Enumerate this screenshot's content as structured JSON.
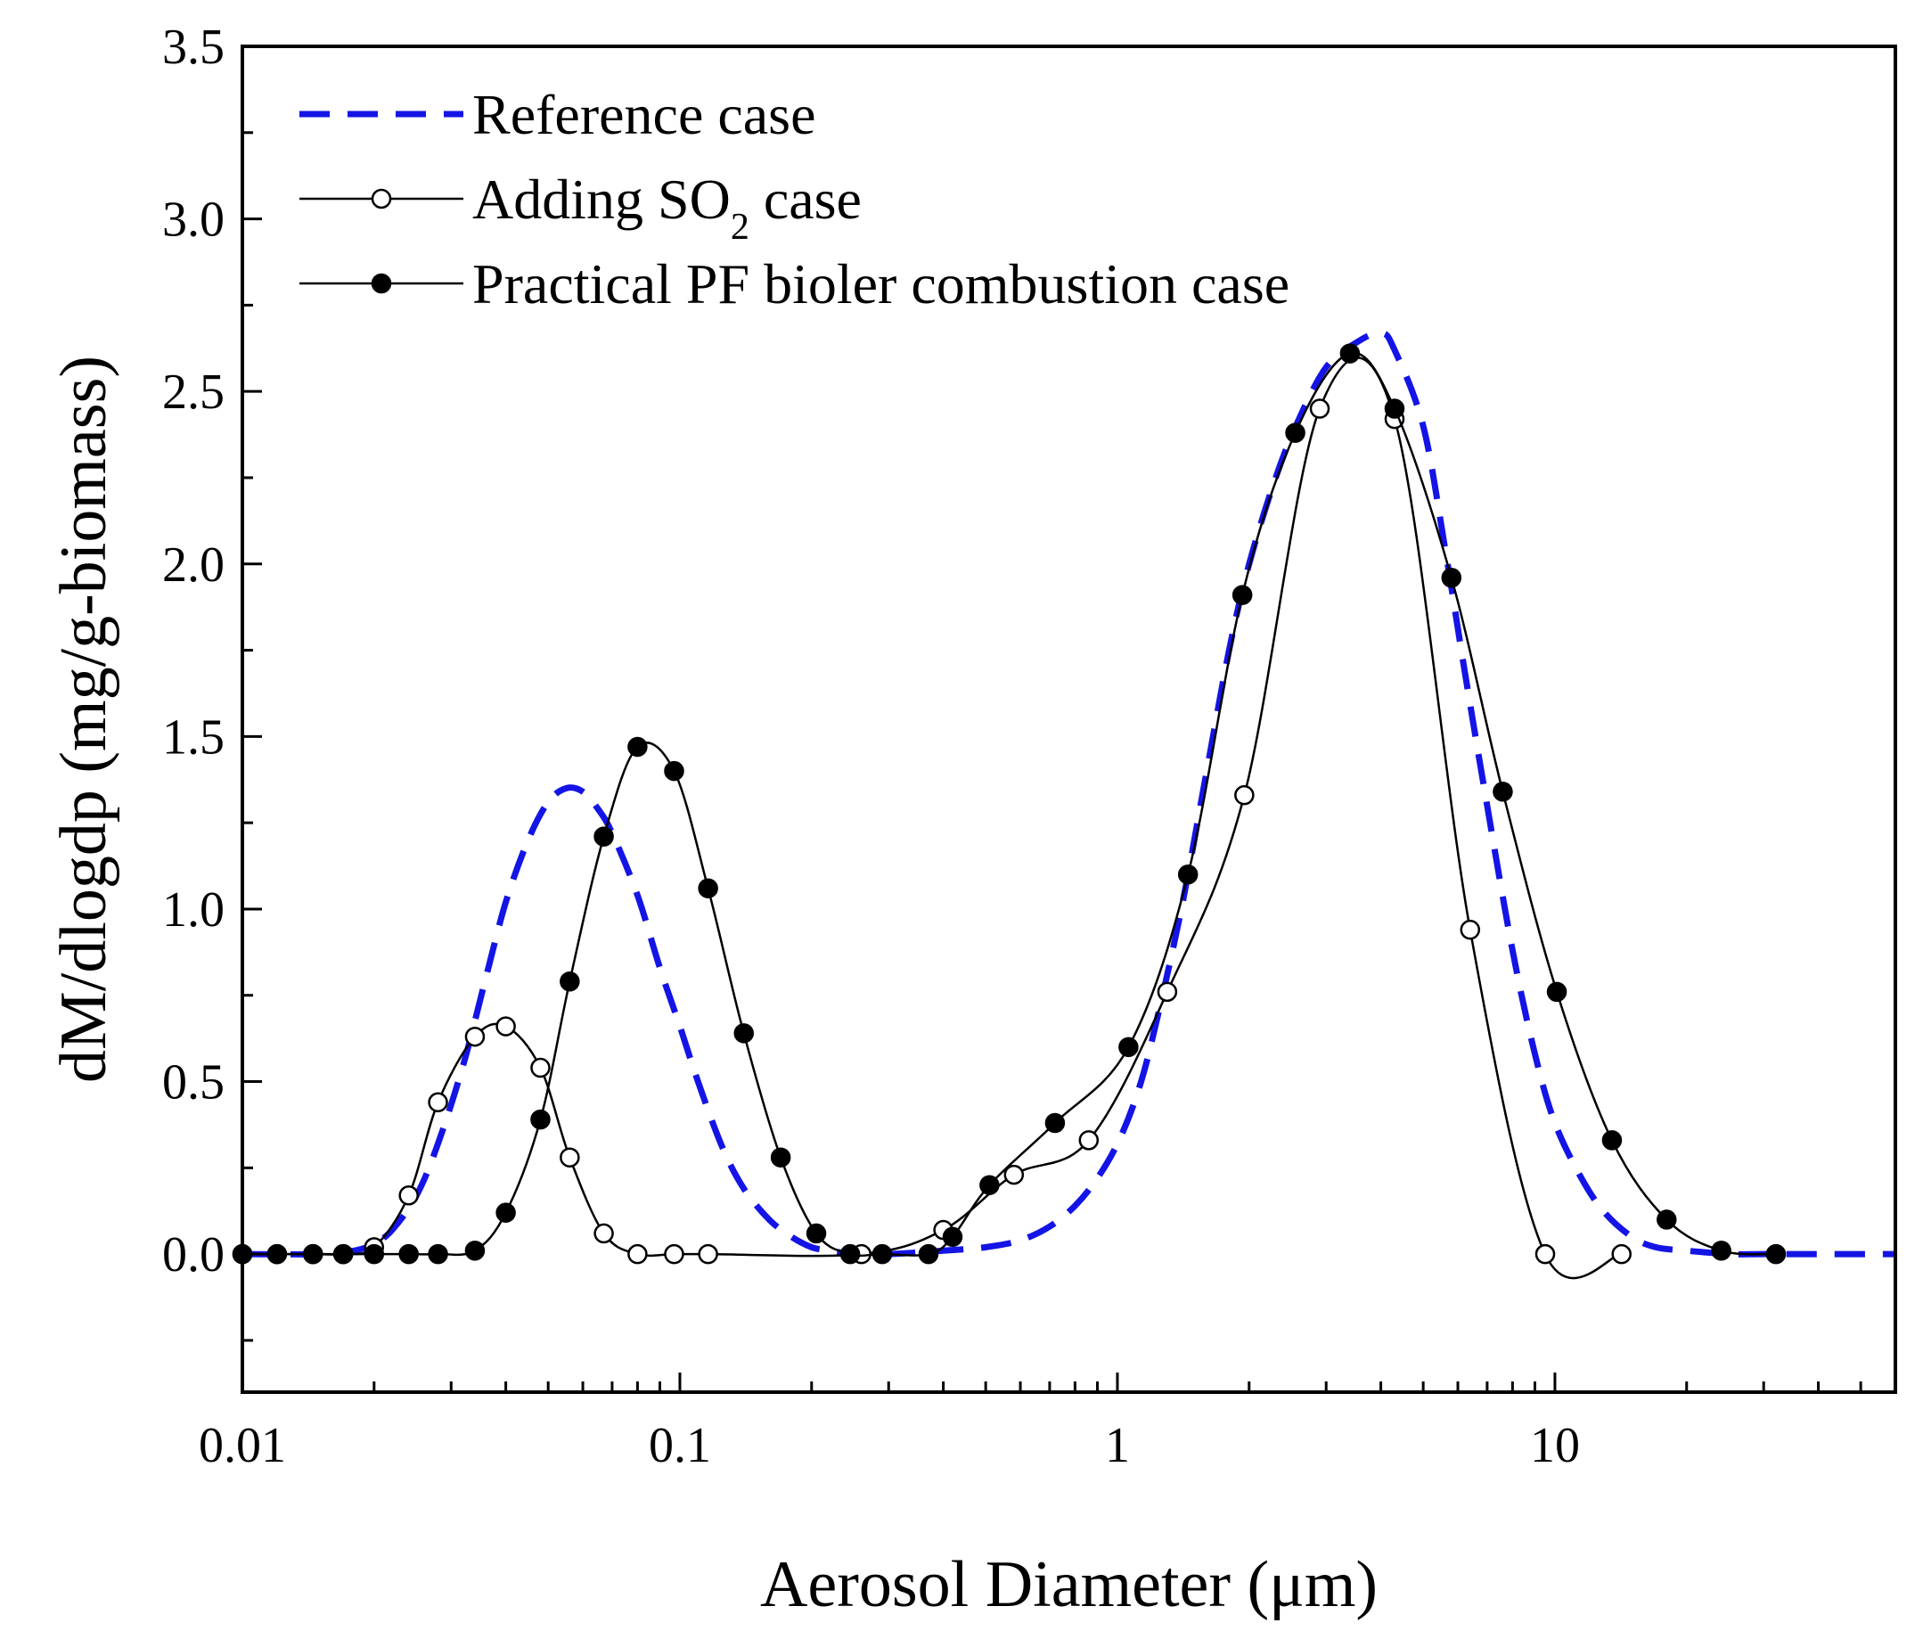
{
  "chart_data": {
    "type": "line",
    "xlabel": "Aerosol Diameter (μm)",
    "ylabel": "dM/dlogdp (mg/g-biomass)",
    "xscale": "log",
    "xlim": [
      0.01,
      60
    ],
    "ylim": [
      -0.4,
      3.5
    ],
    "x_ticks": [
      {
        "value": 0.01,
        "label": "0.01"
      },
      {
        "value": 0.1,
        "label": "0.1"
      },
      {
        "value": 1,
        "label": "1"
      },
      {
        "value": 10,
        "label": "10"
      }
    ],
    "y_ticks": [
      {
        "value": 0.0,
        "label": "0.0"
      },
      {
        "value": 0.5,
        "label": "0.5"
      },
      {
        "value": 1.0,
        "label": "1.0"
      },
      {
        "value": 1.5,
        "label": "1.5"
      },
      {
        "value": 2.0,
        "label": "2.0"
      },
      {
        "value": 2.5,
        "label": "2.5"
      },
      {
        "value": 3.0,
        "label": "3.0"
      },
      {
        "value": 3.5,
        "label": "3.5"
      }
    ],
    "legend_position": "top-left",
    "grid": false,
    "series": [
      {
        "name": "Reference case",
        "style": "dashed",
        "color": "#1414e6",
        "marker": "none",
        "x": [
          0.01,
          0.015,
          0.018,
          0.02,
          0.022,
          0.025,
          0.028,
          0.032,
          0.036,
          0.04,
          0.045,
          0.05,
          0.055,
          0.06,
          0.065,
          0.07,
          0.08,
          0.09,
          0.1,
          0.11,
          0.125,
          0.14,
          0.16,
          0.18,
          0.2,
          0.22,
          0.25,
          0.3,
          0.4,
          0.5,
          0.6,
          0.7,
          0.8,
          0.9,
          1.0,
          1.1,
          1.2,
          1.4,
          1.6,
          1.8,
          2.0,
          2.3,
          2.6,
          3.0,
          3.5,
          4.0,
          4.3,
          5.0,
          5.6,
          6.2,
          7.0,
          8.0,
          9.0,
          10.0,
          11.5,
          13.0,
          15.0,
          17.0,
          20.0,
          25.0,
          30.0,
          40.0,
          60.0
        ],
        "y": [
          0.0,
          0.0,
          0.01,
          0.03,
          0.07,
          0.17,
          0.32,
          0.55,
          0.8,
          1.02,
          1.2,
          1.31,
          1.35,
          1.34,
          1.29,
          1.22,
          1.04,
          0.83,
          0.66,
          0.5,
          0.31,
          0.19,
          0.1,
          0.05,
          0.02,
          0.01,
          0.0,
          0.0,
          0.01,
          0.02,
          0.04,
          0.08,
          0.14,
          0.22,
          0.32,
          0.45,
          0.62,
          1.0,
          1.4,
          1.75,
          2.0,
          2.25,
          2.42,
          2.57,
          2.64,
          2.67,
          2.62,
          2.4,
          2.05,
          1.7,
          1.3,
          0.88,
          0.58,
          0.38,
          0.22,
          0.12,
          0.05,
          0.02,
          0.01,
          0.0,
          0.0,
          0.0,
          0.0
        ]
      },
      {
        "name": "Adding SO₂ case",
        "style": "solid",
        "color": "#000000",
        "marker": "open-circle",
        "x": [
          0.01,
          0.012,
          0.0145,
          0.017,
          0.02,
          0.024,
          0.028,
          0.034,
          0.04,
          0.048,
          0.056,
          0.067,
          0.08,
          0.097,
          0.116,
          0.26,
          0.4,
          0.58,
          0.86,
          1.3,
          1.95,
          2.9,
          4.3,
          6.4,
          9.5,
          14.2
        ],
        "y": [
          0.0,
          0.0,
          0.0,
          0.0,
          0.02,
          0.17,
          0.44,
          0.63,
          0.66,
          0.54,
          0.28,
          0.06,
          0.0,
          0.0,
          0.0,
          0.0,
          0.07,
          0.23,
          0.33,
          0.76,
          1.33,
          2.45,
          2.42,
          0.94,
          0.0,
          0.0
        ]
      },
      {
        "name": "Practical PF bioler combustion case",
        "style": "solid",
        "color": "#000000",
        "marker": "filled-circle",
        "x": [
          0.01,
          0.012,
          0.0145,
          0.017,
          0.02,
          0.024,
          0.028,
          0.034,
          0.04,
          0.048,
          0.056,
          0.067,
          0.08,
          0.097,
          0.116,
          0.14,
          0.17,
          0.205,
          0.245,
          0.29,
          0.37,
          0.42,
          0.51,
          0.72,
          1.06,
          1.45,
          1.93,
          2.55,
          3.4,
          4.3,
          5.8,
          7.6,
          10.1,
          13.5,
          18.0,
          24.0,
          32.0
        ],
        "y": [
          0.0,
          0.0,
          0.0,
          0.0,
          0.0,
          0.0,
          0.0,
          0.01,
          0.12,
          0.39,
          0.79,
          1.21,
          1.47,
          1.4,
          1.06,
          0.64,
          0.28,
          0.06,
          0.0,
          0.0,
          0.0,
          0.05,
          0.2,
          0.38,
          0.6,
          1.1,
          1.91,
          2.38,
          2.61,
          2.45,
          1.96,
          1.34,
          0.76,
          0.33,
          0.1,
          0.01,
          0.0
        ]
      }
    ]
  }
}
